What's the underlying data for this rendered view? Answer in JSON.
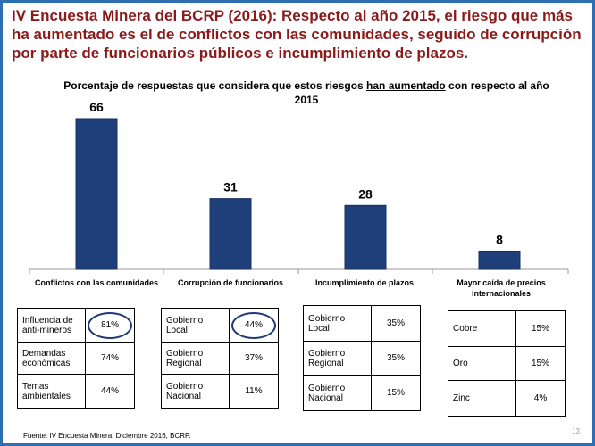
{
  "slide": {
    "title": "IV Encuesta Minera del BCRP (2016): Respecto al año 2015, el riesgo que más ha aumentado es el de conflictos con las comunidades, seguido de corrupción por parte de funcionarios públicos e incumplimiento de plazos.",
    "source": "Fuente: IV Encuesta Minera, Diciembre 2016, BCRP.",
    "page_number": "13"
  },
  "chart_data": {
    "type": "bar",
    "title_part1": "Porcentaje de respuestas que considera que estos riesgos ",
    "title_underlined": "han aumentado",
    "title_part2": " con respecto al año 2015",
    "categories": [
      "Conflictos con las comunidades",
      "Corrupción de funcionarios",
      "Incumplimiento de plazos",
      "Mayor caída de precios internacionales"
    ],
    "values": [
      66,
      31,
      28,
      8
    ],
    "data_labels": [
      "66",
      "31",
      "28",
      "8"
    ],
    "ylim": [
      0,
      66
    ],
    "grid": false,
    "bar_color": "#1f3f7a"
  },
  "tables": [
    {
      "rows": [
        {
          "label": "Influencia de anti-mineros",
          "value": "81%",
          "circled": true
        },
        {
          "label": "Demandas económicas",
          "value": "74%",
          "circled": false
        },
        {
          "label": "Temas ambientales",
          "value": "44%",
          "circled": false
        }
      ]
    },
    {
      "rows": [
        {
          "label": "Gobierno Local",
          "value": "44%",
          "circled": true
        },
        {
          "label": "Gobierno Regional",
          "value": "37%",
          "circled": false
        },
        {
          "label": "Gobierno Nacional",
          "value": "11%",
          "circled": false
        }
      ]
    },
    {
      "rows": [
        {
          "label": "Gobierno Local",
          "value": "35%",
          "circled": false
        },
        {
          "label": "Gobierno Regional",
          "value": "35%",
          "circled": false
        },
        {
          "label": "Gobierno Nacional",
          "value": "15%",
          "circled": false
        }
      ]
    },
    {
      "rows": [
        {
          "label": "Cobre",
          "value": "15%",
          "circled": false
        },
        {
          "label": "Oro",
          "value": "15%",
          "circled": false
        },
        {
          "label": "Zinc",
          "value": "4%",
          "circled": false
        }
      ]
    }
  ]
}
